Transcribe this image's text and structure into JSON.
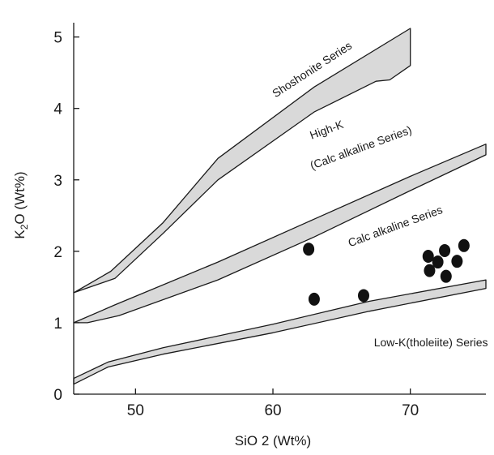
{
  "chart_data": {
    "type": "scatter",
    "xlabel": "SiO 2 (Wt%)",
    "ylabel": "K2O (Wt%)",
    "xlim": [
      45.5,
      75.5
    ],
    "ylim": [
      0,
      5.2
    ],
    "x_ticks": [
      50,
      60,
      70
    ],
    "y_ticks": [
      0,
      1,
      2,
      3,
      4,
      5
    ],
    "grid": false,
    "legend": "none",
    "colors": {
      "band_fill": "#d9d9d9",
      "line": "#1a1a1a",
      "points": "#111111"
    },
    "series_labels": [
      {
        "name": "shoshonite",
        "text": "Shoshonite Series",
        "at": [
          63,
          4.5
        ],
        "rotate": -33
      },
      {
        "name": "high-k-1",
        "text": "High-K",
        "at": [
          64,
          3.65
        ],
        "rotate": -20
      },
      {
        "name": "high-k-2",
        "text": "(Calc alkaline Series)",
        "at": [
          66.5,
          3.4
        ],
        "rotate": -20
      },
      {
        "name": "calc-alkaline",
        "text": "Calc alkaline Series",
        "at": [
          69,
          2.3
        ],
        "rotate": -20
      },
      {
        "name": "low-k",
        "text": "Low-K(tholeiite) Series",
        "at": [
          71.5,
          0.67
        ],
        "rotate": 0
      }
    ],
    "boundaries": [
      {
        "name": "shoshonite-high-k-band",
        "polygon": [
          [
            45.5,
            1.42
          ],
          [
            48.2,
            1.72
          ],
          [
            52,
            2.4
          ],
          [
            56,
            3.3
          ],
          [
            63,
            4.3
          ],
          [
            70,
            5.12
          ],
          [
            70,
            4.6
          ],
          [
            68.5,
            4.4
          ],
          [
            67.5,
            4.38
          ],
          [
            63,
            3.95
          ],
          [
            56,
            3.0
          ],
          [
            52,
            2.25
          ],
          [
            48.5,
            1.62
          ]
        ]
      },
      {
        "name": "high-k-calc-alkaline-band",
        "polygon": [
          [
            45.5,
            1.0
          ],
          [
            48.5,
            1.25
          ],
          [
            56,
            1.85
          ],
          [
            63,
            2.45
          ],
          [
            70,
            3.05
          ],
          [
            75.5,
            3.5
          ],
          [
            75.5,
            3.35
          ],
          [
            70,
            2.85
          ],
          [
            63,
            2.2
          ],
          [
            56,
            1.6
          ],
          [
            48.8,
            1.1
          ],
          [
            46.5,
            1.0
          ]
        ]
      },
      {
        "name": "calc-alkaline-low-k-band",
        "polygon": [
          [
            45.5,
            0.22
          ],
          [
            48,
            0.45
          ],
          [
            52,
            0.65
          ],
          [
            60,
            0.98
          ],
          [
            67,
            1.3
          ],
          [
            75.5,
            1.6
          ],
          [
            75.5,
            1.48
          ],
          [
            67,
            1.16
          ],
          [
            60,
            0.86
          ],
          [
            52,
            0.56
          ],
          [
            48,
            0.38
          ],
          [
            45.5,
            0.14
          ]
        ]
      }
    ],
    "points": [
      {
        "x": 62.6,
        "y": 2.03
      },
      {
        "x": 63.0,
        "y": 1.33
      },
      {
        "x": 66.6,
        "y": 1.38
      },
      {
        "x": 71.3,
        "y": 1.93
      },
      {
        "x": 71.4,
        "y": 1.73
      },
      {
        "x": 72.0,
        "y": 1.85
      },
      {
        "x": 72.5,
        "y": 2.01
      },
      {
        "x": 72.6,
        "y": 1.65
      },
      {
        "x": 73.4,
        "y": 1.86
      },
      {
        "x": 73.9,
        "y": 2.08
      }
    ]
  }
}
